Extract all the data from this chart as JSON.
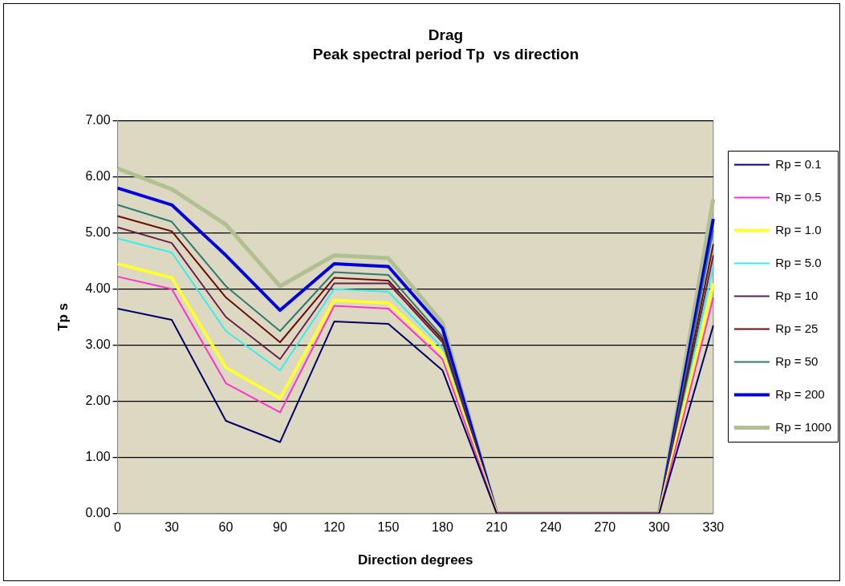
{
  "chart_data": {
    "type": "line",
    "title": "Drag",
    "subtitle": "Peak spectral period Tp  vs direction",
    "xlabel": "Direction degrees",
    "ylabel": "Tp s",
    "categories": [
      "0",
      "30",
      "60",
      "90",
      "120",
      "150",
      "180",
      "210",
      "240",
      "270",
      "300",
      "330"
    ],
    "series": [
      {
        "name": "Rp = 0.1",
        "color": "#000066",
        "values": [
          3.65,
          3.45,
          1.65,
          1.27,
          3.42,
          3.38,
          2.55,
          0,
          0,
          0,
          0,
          3.35
        ]
      },
      {
        "name": "Rp = 0.5",
        "color": "#ff33cc",
        "values": [
          4.22,
          4.0,
          2.32,
          1.8,
          3.7,
          3.65,
          2.75,
          0,
          0,
          0,
          0,
          3.85
        ]
      },
      {
        "name": "Rp = 1.0",
        "color": "#ffff33",
        "values": [
          4.45,
          4.2,
          2.6,
          2.05,
          3.8,
          3.75,
          2.85,
          0,
          0,
          0,
          0,
          4.1
        ]
      },
      {
        "name": "Rp = 5.0",
        "color": "#33eeee",
        "values": [
          4.9,
          4.65,
          3.25,
          2.55,
          4.0,
          3.95,
          2.95,
          0,
          0,
          0,
          0,
          4.4
        ]
      },
      {
        "name": "Rp = 10",
        "color": "#661f4f",
        "values": [
          5.1,
          4.82,
          3.5,
          2.75,
          4.1,
          4.1,
          3.05,
          0,
          0,
          0,
          0,
          4.6
        ]
      },
      {
        "name": "Rp = 25",
        "color": "#6b0d0d",
        "values": [
          5.3,
          5.03,
          3.85,
          3.05,
          4.2,
          4.15,
          3.1,
          0,
          0,
          0,
          0,
          4.8
        ]
      },
      {
        "name": "Rp = 50",
        "color": "#2e7a70",
        "values": [
          5.5,
          5.2,
          4.05,
          3.25,
          4.3,
          4.25,
          3.15,
          0,
          0,
          0,
          0,
          5.05
        ]
      },
      {
        "name": "Rp = 200",
        "color": "#0000dd",
        "values": [
          5.8,
          5.5,
          4.6,
          3.62,
          4.45,
          4.4,
          3.3,
          0,
          0,
          0,
          0,
          5.25
        ]
      },
      {
        "name": "Rp = 1000",
        "color": "#b0c090",
        "values": [
          6.15,
          5.78,
          5.15,
          4.05,
          4.6,
          4.55,
          3.4,
          0,
          0,
          0,
          0,
          5.6
        ]
      }
    ],
    "ylim": [
      0,
      7
    ],
    "yticks": [
      {
        "value": 0,
        "label": "0.00"
      },
      {
        "value": 1,
        "label": "1.00"
      },
      {
        "value": 2,
        "label": "2.00"
      },
      {
        "value": 3,
        "label": "3.00"
      },
      {
        "value": 4,
        "label": "4.00"
      },
      {
        "value": 5,
        "label": "5.00"
      },
      {
        "value": 6,
        "label": "6.00"
      },
      {
        "value": 7,
        "label": "7.00"
      }
    ],
    "grid": "y",
    "legend": "right",
    "marker": "none",
    "line_style": "solid"
  }
}
